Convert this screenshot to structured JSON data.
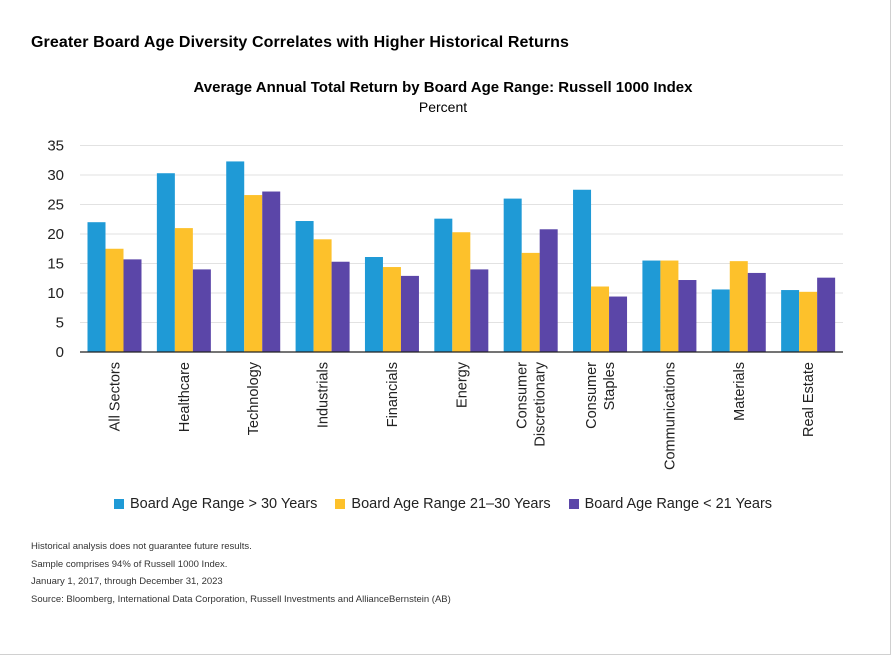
{
  "headline": "Greater Board Age Diversity Correlates with Higher Historical Returns",
  "chart_data": {
    "type": "bar",
    "title": "Average Annual Total Return by Board Age Range: Russell 1000 Index",
    "subtitle": "Percent",
    "xlabel": "",
    "ylabel": "",
    "ylim": [
      0,
      35
    ],
    "yticks": [
      0,
      5,
      10,
      15,
      20,
      25,
      30,
      35
    ],
    "grid": true,
    "legend_position": "bottom",
    "categories": [
      [
        "All Sectors"
      ],
      [
        "Healthcare"
      ],
      [
        "Technology"
      ],
      [
        "Industrials"
      ],
      [
        "Financials"
      ],
      [
        "Energy"
      ],
      [
        "Consumer",
        "Discretionary"
      ],
      [
        "Consumer",
        "Staples"
      ],
      [
        "Communications"
      ],
      [
        "Materials"
      ],
      [
        "Real Estate"
      ]
    ],
    "series": [
      {
        "name": "Board Age Range > 30 Years",
        "color": "#1f9ad6",
        "values": [
          22.0,
          30.3,
          32.3,
          22.2,
          16.1,
          22.6,
          26.0,
          27.5,
          15.5,
          10.6,
          10.5
        ]
      },
      {
        "name": "Board Age Range 21–30 Years",
        "color": "#fdc12b",
        "values": [
          17.5,
          21.0,
          26.6,
          19.1,
          14.4,
          20.3,
          16.8,
          11.1,
          15.5,
          15.4,
          10.2
        ]
      },
      {
        "name": "Board Age Range < 21 Years",
        "color": "#5b46a8",
        "values": [
          15.7,
          14.0,
          27.2,
          15.3,
          12.9,
          14.0,
          20.8,
          9.4,
          12.2,
          13.4,
          12.6
        ]
      }
    ]
  },
  "notes": [
    "Historical analysis does not guarantee future results.",
    "Sample comprises 94% of Russell 1000 Index.",
    "January 1, 2017, through December 31, 2023",
    "Source: Bloomberg, International Data Corporation, Russell Investments and AllianceBernstein (AB)"
  ]
}
